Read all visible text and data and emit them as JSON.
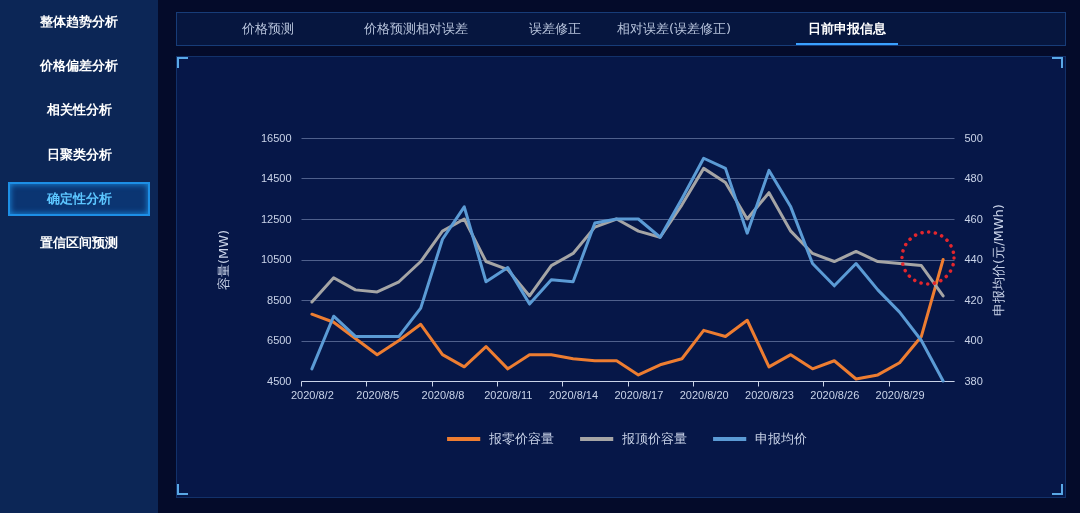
{
  "chart_data": {
    "type": "line",
    "categories": [
      "2020/8/2",
      null,
      null,
      "2020/8/5",
      null,
      null,
      "2020/8/8",
      null,
      null,
      "2020/8/11",
      null,
      null,
      "2020/8/14",
      null,
      null,
      "2020/8/17",
      null,
      null,
      "2020/8/20",
      null,
      null,
      "2020/8/23",
      null,
      null,
      "2020/8/26",
      null,
      null,
      "2020/8/29",
      null,
      null
    ],
    "series": [
      {
        "name": "报零价容量",
        "color": "#ed7d31",
        "values": [
          7800,
          7400,
          6600,
          5800,
          6500,
          7300,
          5800,
          5200,
          6200,
          5100,
          5800,
          5800,
          5600,
          5500,
          5500,
          4800,
          5300,
          5600,
          7000,
          6700,
          7500,
          5200,
          5800,
          5100,
          5500,
          4600,
          4800,
          5400,
          6700,
          10500
        ]
      },
      {
        "name": "报顶价容量",
        "color": "#a5a5a5",
        "values": [
          8400,
          9600,
          9000,
          8900,
          9400,
          10400,
          11900,
          12500,
          10400,
          10000,
          8700,
          10200,
          10800,
          12100,
          12500,
          11900,
          11600,
          13200,
          15000,
          14300,
          12500,
          13800,
          11900,
          10800,
          10400,
          10900,
          10400,
          10300,
          10200,
          8700
        ]
      },
      {
        "name": "申报均价",
        "color": "#5b9bd5",
        "axis": "y2",
        "values": [
          386,
          412,
          402,
          402,
          402,
          416,
          450,
          466,
          429,
          436,
          418,
          430,
          429,
          458,
          460,
          460,
          451,
          470,
          490,
          485,
          453,
          484,
          466,
          438,
          427,
          438,
          425,
          414,
          400,
          380
        ]
      }
    ],
    "ylabel": "容量(MW)",
    "y2label": "申报均价(元/MWh)",
    "ylim": [
      4500,
      16500
    ],
    "yticks": [
      4500,
      6500,
      8500,
      10500,
      12500,
      14500,
      16500
    ],
    "y2lim": [
      380,
      500
    ],
    "y2ticks": [
      380,
      400,
      420,
      440,
      460,
      480,
      500
    ],
    "grid": "y",
    "legend": "bottom",
    "annotations": [
      "整体趋势分析",
      "价格偏差分析",
      "相关性分析",
      "日聚类分析",
      "确定性分析",
      "置信区间预测",
      "价格预测",
      "价格预测相对误差",
      "误差修正",
      "相对误差(误差修正)",
      "日前申报信息"
    ]
  }
}
